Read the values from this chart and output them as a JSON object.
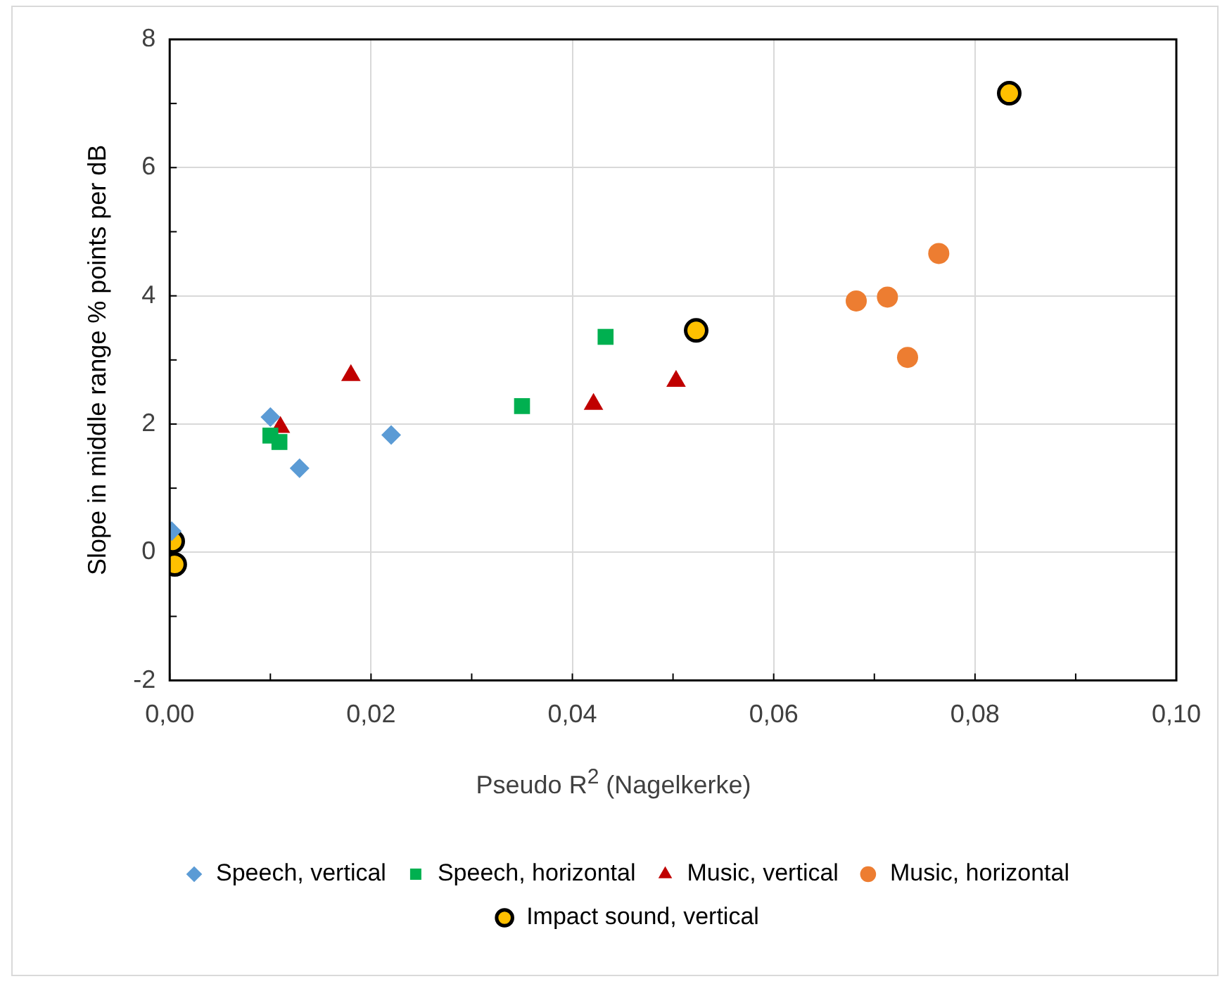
{
  "chart_data": {
    "type": "scatter",
    "xlabel": "Pseudo R$^{2}$ (Nagelkerke)",
    "ylabel": "Slope in middle range % points per dB",
    "xlim": [
      0,
      0.1
    ],
    "xticks": [
      {
        "value": 0,
        "label": "0,00"
      },
      {
        "value": 0.01,
        "label": null
      },
      {
        "value": 0.02,
        "label": "0,02"
      },
      {
        "value": 0.03,
        "label": null
      },
      {
        "value": 0.04,
        "label": "0,04"
      },
      {
        "value": 0.05,
        "label": null
      },
      {
        "value": 0.06,
        "label": "0,06"
      },
      {
        "value": 0.07,
        "label": null
      },
      {
        "value": 0.08,
        "label": "0,08"
      },
      {
        "value": 0.09,
        "label": null
      },
      {
        "value": 0.1,
        "label": "0,10"
      }
    ],
    "ylim": [
      -2,
      8
    ],
    "yticks": [
      -2,
      {
        "value": -1,
        "label": null
      },
      0,
      {
        "value": 1,
        "label": null
      },
      2,
      {
        "value": 3,
        "label": null
      },
      4,
      {
        "value": 5,
        "label": null
      },
      6,
      {
        "value": 7,
        "label": null
      },
      8
    ],
    "grid": true,
    "legend": "bottom",
    "series": [
      {
        "name": "Speech, vertical",
        "color": "#5b9bd5",
        "marker": "diamond",
        "x": [
          0.0002,
          0.01,
          0.0129,
          0.022
        ],
        "values": [
          0.33,
          2.11,
          1.31,
          1.83
        ]
      },
      {
        "name": "Speech, horizontal",
        "color": "#00b050",
        "marker": "square",
        "x": [
          0.01,
          0.0109,
          0.035,
          0.0433
        ],
        "values": [
          1.82,
          1.72,
          2.28,
          3.36
        ]
      },
      {
        "name": "Music, vertical",
        "color": "#c00000",
        "marker": "triangle",
        "x": [
          0.011,
          0.018,
          0.0421,
          0.0503
        ],
        "values": [
          1.95,
          2.76,
          2.31,
          2.67
        ]
      },
      {
        "name": "Music, horizontal",
        "color": "#ed7d31",
        "marker": "circle",
        "x": [
          0.0682,
          0.0713,
          0.0733,
          0.0764
        ],
        "values": [
          3.92,
          3.98,
          3.04,
          4.66
        ]
      },
      {
        "name": "Impact sound, vertical",
        "color": "#ffc000",
        "marker": "circle",
        "x": [
          0.0003,
          0.0005,
          0.0523,
          0.0834
        ],
        "values": [
          0.17,
          -0.19,
          3.46,
          7.16
        ]
      }
    ]
  }
}
